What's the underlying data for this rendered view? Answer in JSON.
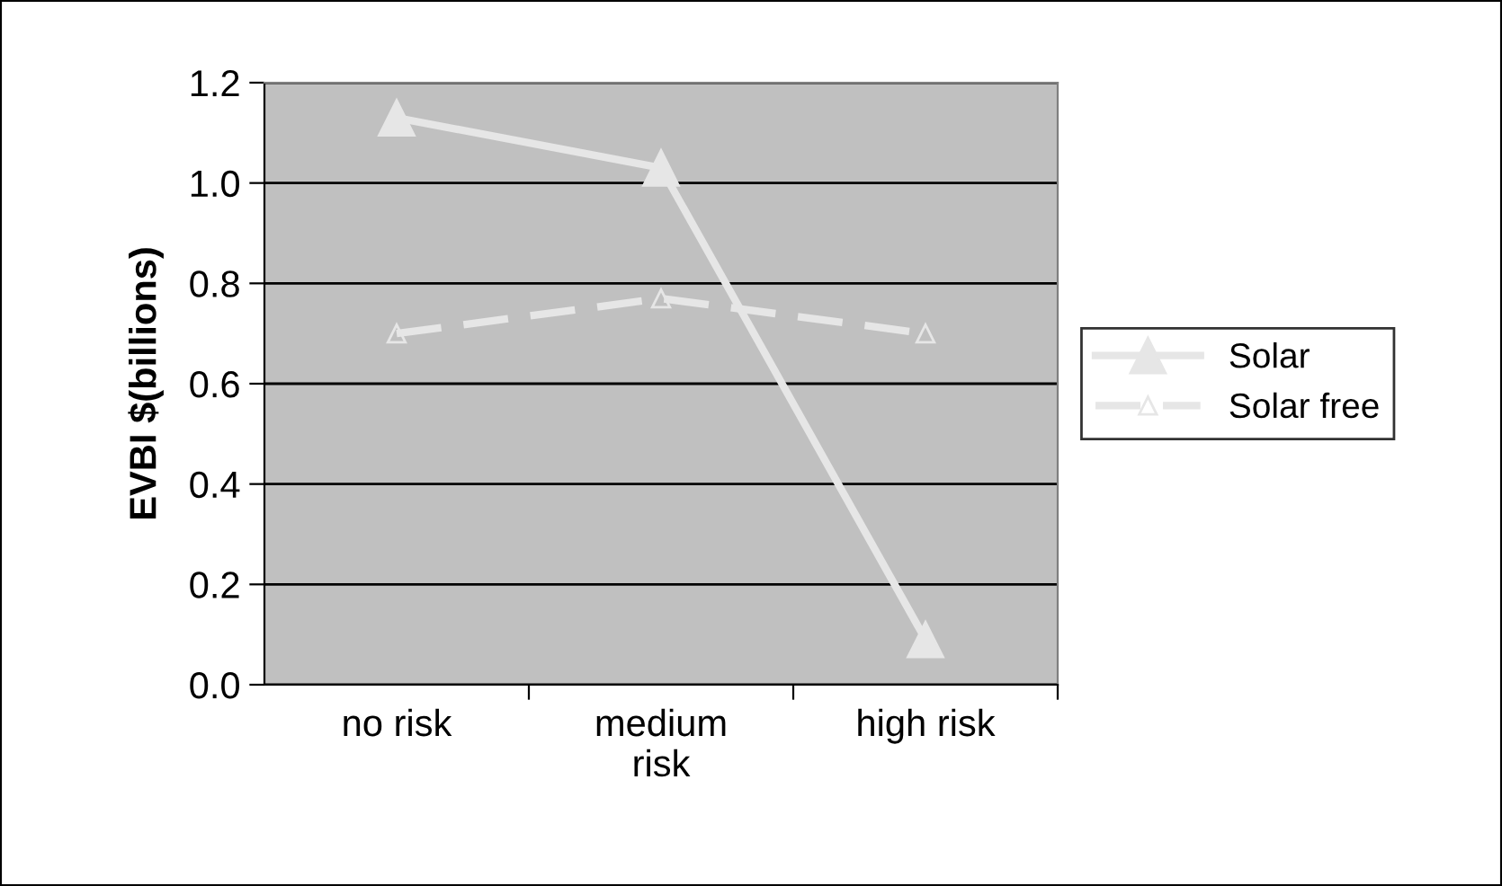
{
  "chart_data": {
    "type": "line",
    "ylabel": "EVBI $(billions)",
    "categories": [
      "no risk",
      "medium\nrisk",
      "high risk"
    ],
    "series": [
      {
        "name": "Solar",
        "color": "#e6e6e6",
        "values": [
          1.13,
          1.03,
          0.09
        ],
        "marker": "triangle",
        "line_style": "solid"
      },
      {
        "name": "Solar free",
        "color": "#e6e6e6",
        "values": [
          0.7,
          0.77,
          0.7
        ],
        "marker": "triangle",
        "line_style": "dashed"
      }
    ],
    "ylim": [
      0,
      1.2
    ],
    "yticks": [
      {
        "value": 0,
        "label": "0.0"
      },
      0.2,
      0.4,
      0.6,
      0.8,
      {
        "value": 1,
        "label": "1.0"
      },
      1.2
    ],
    "grid": "y",
    "legend": "right"
  }
}
